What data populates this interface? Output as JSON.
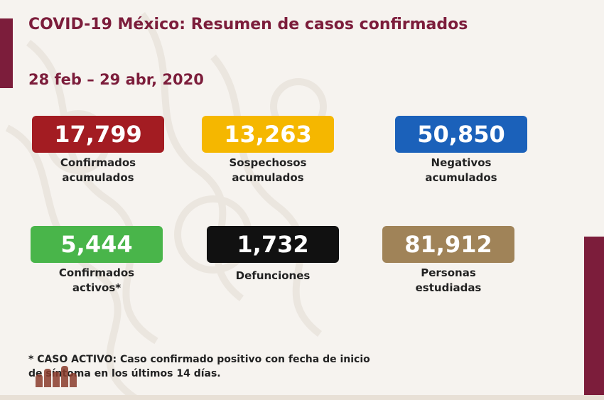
{
  "header": {
    "title": "COVID-19 México: Resumen de casos confirmados",
    "date_range": "28 feb – 29 abr, 2020"
  },
  "stats": [
    {
      "value": "17,799",
      "label_line1": "Confirmados",
      "label_line2": "acumulados",
      "color": "#a31c22"
    },
    {
      "value": "13,263",
      "label_line1": "Sospechosos",
      "label_line2": "acumulados",
      "color": "#f5b700"
    },
    {
      "value": "50,850",
      "label_line1": "Negativos",
      "label_line2": "acumulados",
      "color": "#1b61ba"
    },
    {
      "value": "5,444",
      "label_line1": "Confirmados",
      "label_line2": "activos*",
      "color": "#49b54a"
    },
    {
      "value": "1,732",
      "label_line1": "Defunciones",
      "label_line2": "",
      "color": "#111111"
    },
    {
      "value": "81,912",
      "label_line1": "Personas",
      "label_line2": "estudiadas",
      "color": "#a08358"
    }
  ],
  "footnote": {
    "line1": "* CASO ACTIVO: Caso confirmado positivo con fecha de inicio",
    "line2": "de síntoma en los últimos 14 días."
  },
  "colors": {
    "accent": "#7c1d3b",
    "background": "#f6f3ef"
  }
}
